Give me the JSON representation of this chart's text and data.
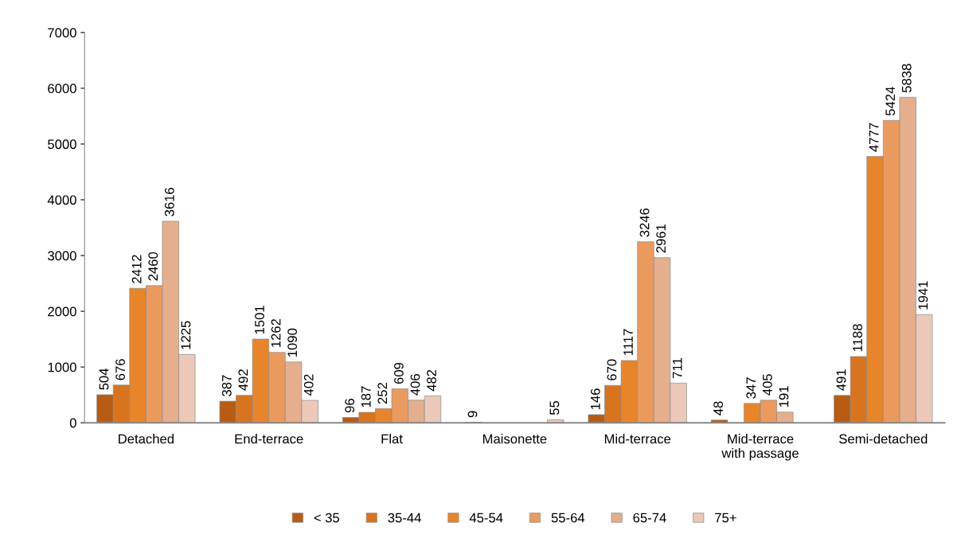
{
  "chart_data": {
    "type": "bar",
    "categories": [
      "Detached",
      "End-terrace",
      "Flat",
      "Maisonette",
      "Mid-terrace",
      "Mid-terrace\nwith passage",
      "Semi-detached"
    ],
    "series": [
      {
        "name": "< 35",
        "color": "#b85c14",
        "values": [
          504,
          387,
          96,
          9,
          146,
          48,
          491
        ]
      },
      {
        "name": "35-44",
        "color": "#d8741e",
        "values": [
          676,
          492,
          187,
          null,
          670,
          null,
          1188
        ]
      },
      {
        "name": "45-54",
        "color": "#e8852a",
        "values": [
          2412,
          1501,
          252,
          null,
          1117,
          347,
          4777
        ]
      },
      {
        "name": "55-64",
        "color": "#eb9a5e",
        "values": [
          2460,
          1262,
          609,
          null,
          3246,
          405,
          5424
        ]
      },
      {
        "name": "65-74",
        "color": "#e5ae8c",
        "values": [
          3616,
          1090,
          406,
          null,
          2961,
          191,
          5838
        ]
      },
      {
        "name": "75+",
        "color": "#ecc8b8",
        "values": [
          1225,
          402,
          482,
          55,
          711,
          null,
          1941
        ]
      }
    ],
    "ylim": [
      0,
      7000
    ],
    "yticks": [
      0,
      1000,
      2000,
      3000,
      4000,
      5000,
      6000,
      7000
    ],
    "grid": false,
    "legend": "bottom",
    "data_labels": true
  }
}
